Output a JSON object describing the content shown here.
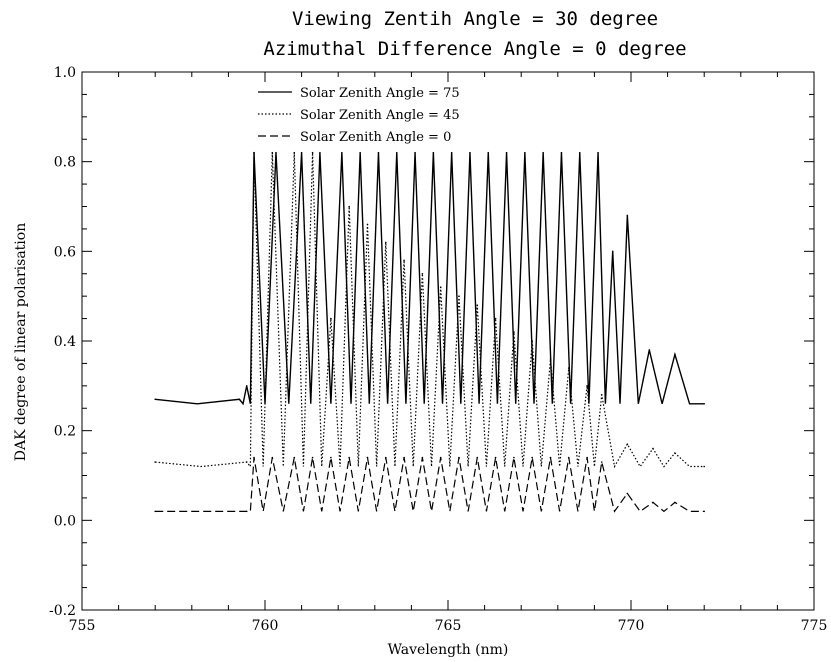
{
  "chart_data": {
    "type": "line",
    "title": "Viewing Zentih Angle = 30 degree",
    "subtitle": "Azimuthal Difference Angle = 0 degree",
    "xlabel": "Wavelength (nm)",
    "ylabel": "DAK degree of linear polarisation",
    "xlim": [
      755,
      775
    ],
    "ylim": [
      -0.2,
      1.0
    ],
    "x_ticks": [
      "755",
      "760",
      "765",
      "770",
      "775"
    ],
    "y_ticks": [
      "-0.2",
      "0.0",
      "0.2",
      "0.4",
      "0.6",
      "0.8",
      "1.0"
    ],
    "legend_position": "top-left",
    "grid": false,
    "series": [
      {
        "name": "Solar Zenith Angle = 75",
        "style": "solid",
        "baseline": 0.26,
        "values_desc": "approx baseline/peak pairs",
        "x": [
          757.0,
          759.3,
          759.5,
          759.7,
          760.3,
          761.0,
          761.5,
          762.1,
          762.6,
          763.1,
          763.6,
          764.1,
          764.6,
          765.1,
          765.6,
          766.1,
          766.6,
          767.1,
          767.6,
          768.1,
          768.6,
          769.1,
          769.5,
          769.9,
          770.5,
          771.2,
          772.0
        ],
        "y": [
          0.27,
          0.27,
          0.3,
          0.82,
          0.82,
          0.82,
          0.82,
          0.82,
          0.82,
          0.82,
          0.82,
          0.82,
          0.82,
          0.82,
          0.82,
          0.82,
          0.82,
          0.82,
          0.82,
          0.82,
          0.82,
          0.82,
          0.6,
          0.68,
          0.38,
          0.37,
          0.26
        ]
      },
      {
        "name": "Solar Zenith Angle = 45",
        "style": "dotted",
        "baseline": 0.12,
        "x": [
          757.0,
          759.5,
          759.7,
          760.2,
          760.8,
          761.3,
          761.8,
          762.3,
          762.8,
          763.3,
          763.8,
          764.3,
          764.8,
          765.3,
          765.8,
          766.3,
          766.8,
          767.3,
          767.8,
          768.3,
          768.8,
          769.2,
          769.9,
          770.6,
          771.2,
          772.0
        ],
        "y": [
          0.13,
          0.13,
          0.82,
          0.82,
          0.82,
          0.82,
          0.45,
          0.7,
          0.66,
          0.62,
          0.58,
          0.55,
          0.52,
          0.5,
          0.48,
          0.45,
          0.42,
          0.4,
          0.36,
          0.34,
          0.3,
          0.28,
          0.17,
          0.16,
          0.15,
          0.12
        ]
      },
      {
        "name": "Solar Zenith Angle = 0",
        "style": "dashed",
        "baseline": 0.02,
        "x": [
          757.0,
          759.5,
          759.7,
          760.2,
          760.8,
          761.3,
          761.8,
          762.3,
          762.8,
          763.3,
          763.8,
          764.3,
          764.8,
          765.3,
          765.8,
          766.3,
          766.8,
          767.3,
          767.8,
          768.3,
          768.8,
          769.2,
          769.9,
          770.6,
          771.2,
          772.0
        ],
        "y": [
          0.02,
          0.02,
          0.14,
          0.14,
          0.14,
          0.14,
          0.14,
          0.14,
          0.14,
          0.14,
          0.14,
          0.14,
          0.14,
          0.14,
          0.14,
          0.14,
          0.14,
          0.14,
          0.14,
          0.14,
          0.14,
          0.13,
          0.06,
          0.04,
          0.04,
          0.02
        ]
      }
    ]
  }
}
